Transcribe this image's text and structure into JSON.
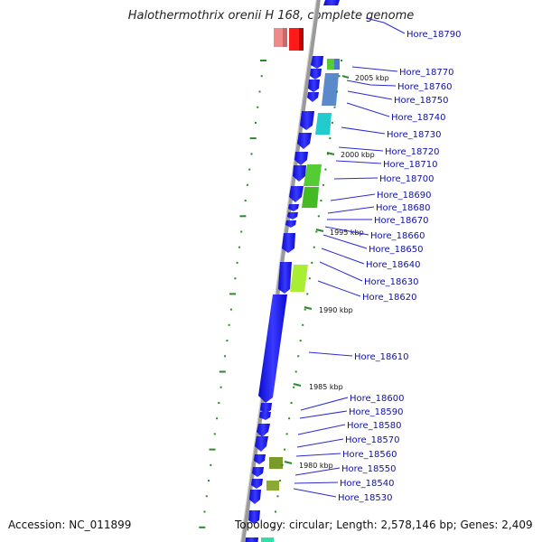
{
  "title": "Halothermothrix orenii H 168, complete genome",
  "accession": "Accession: NC_011899",
  "topology": "Topology: circular; Length: 2,578,146 bp; Genes: 2,409",
  "colors": {
    "backbone": "#9a9a9a",
    "cds": "#1a1af0",
    "tick": "#2a8a2a",
    "label": "#1010a8",
    "label_line": "#2a2ad8",
    "red_gene": "#ff1a1a",
    "pink_gene": "#f08a8a",
    "steelblue_gene": "#5a8acc",
    "cyan_gene": "#22cccc",
    "green_gene": "#55cc33",
    "lime_gene": "#aaee33",
    "olive_gene": "#7a9a2a",
    "teal_gene": "#33ddaa"
  },
  "kbp_marks": [
    "2005 kbp",
    "2000 kbp",
    "1995 kbp",
    "1990 kbp",
    "1985 kbp",
    "1980 kbp"
  ],
  "genes": [
    {
      "name": "Hore_18790"
    },
    {
      "name": "Hore_18770"
    },
    {
      "name": "Hore_18760"
    },
    {
      "name": "Hore_18750"
    },
    {
      "name": "Hore_18740"
    },
    {
      "name": "Hore_18730"
    },
    {
      "name": "Hore_18720"
    },
    {
      "name": "Hore_18710"
    },
    {
      "name": "Hore_18700"
    },
    {
      "name": "Hore_18690"
    },
    {
      "name": "Hore_18680"
    },
    {
      "name": "Hore_18670"
    },
    {
      "name": "Hore_18660"
    },
    {
      "name": "Hore_18650"
    },
    {
      "name": "Hore_18640"
    },
    {
      "name": "Hore_18630"
    },
    {
      "name": "Hore_18620"
    },
    {
      "name": "Hore_18610"
    },
    {
      "name": "Hore_18600"
    },
    {
      "name": "Hore_18590"
    },
    {
      "name": "Hore_18580"
    },
    {
      "name": "Hore_18570"
    },
    {
      "name": "Hore_18560"
    },
    {
      "name": "Hore_18550"
    },
    {
      "name": "Hore_18540"
    },
    {
      "name": "Hore_18530"
    }
  ]
}
